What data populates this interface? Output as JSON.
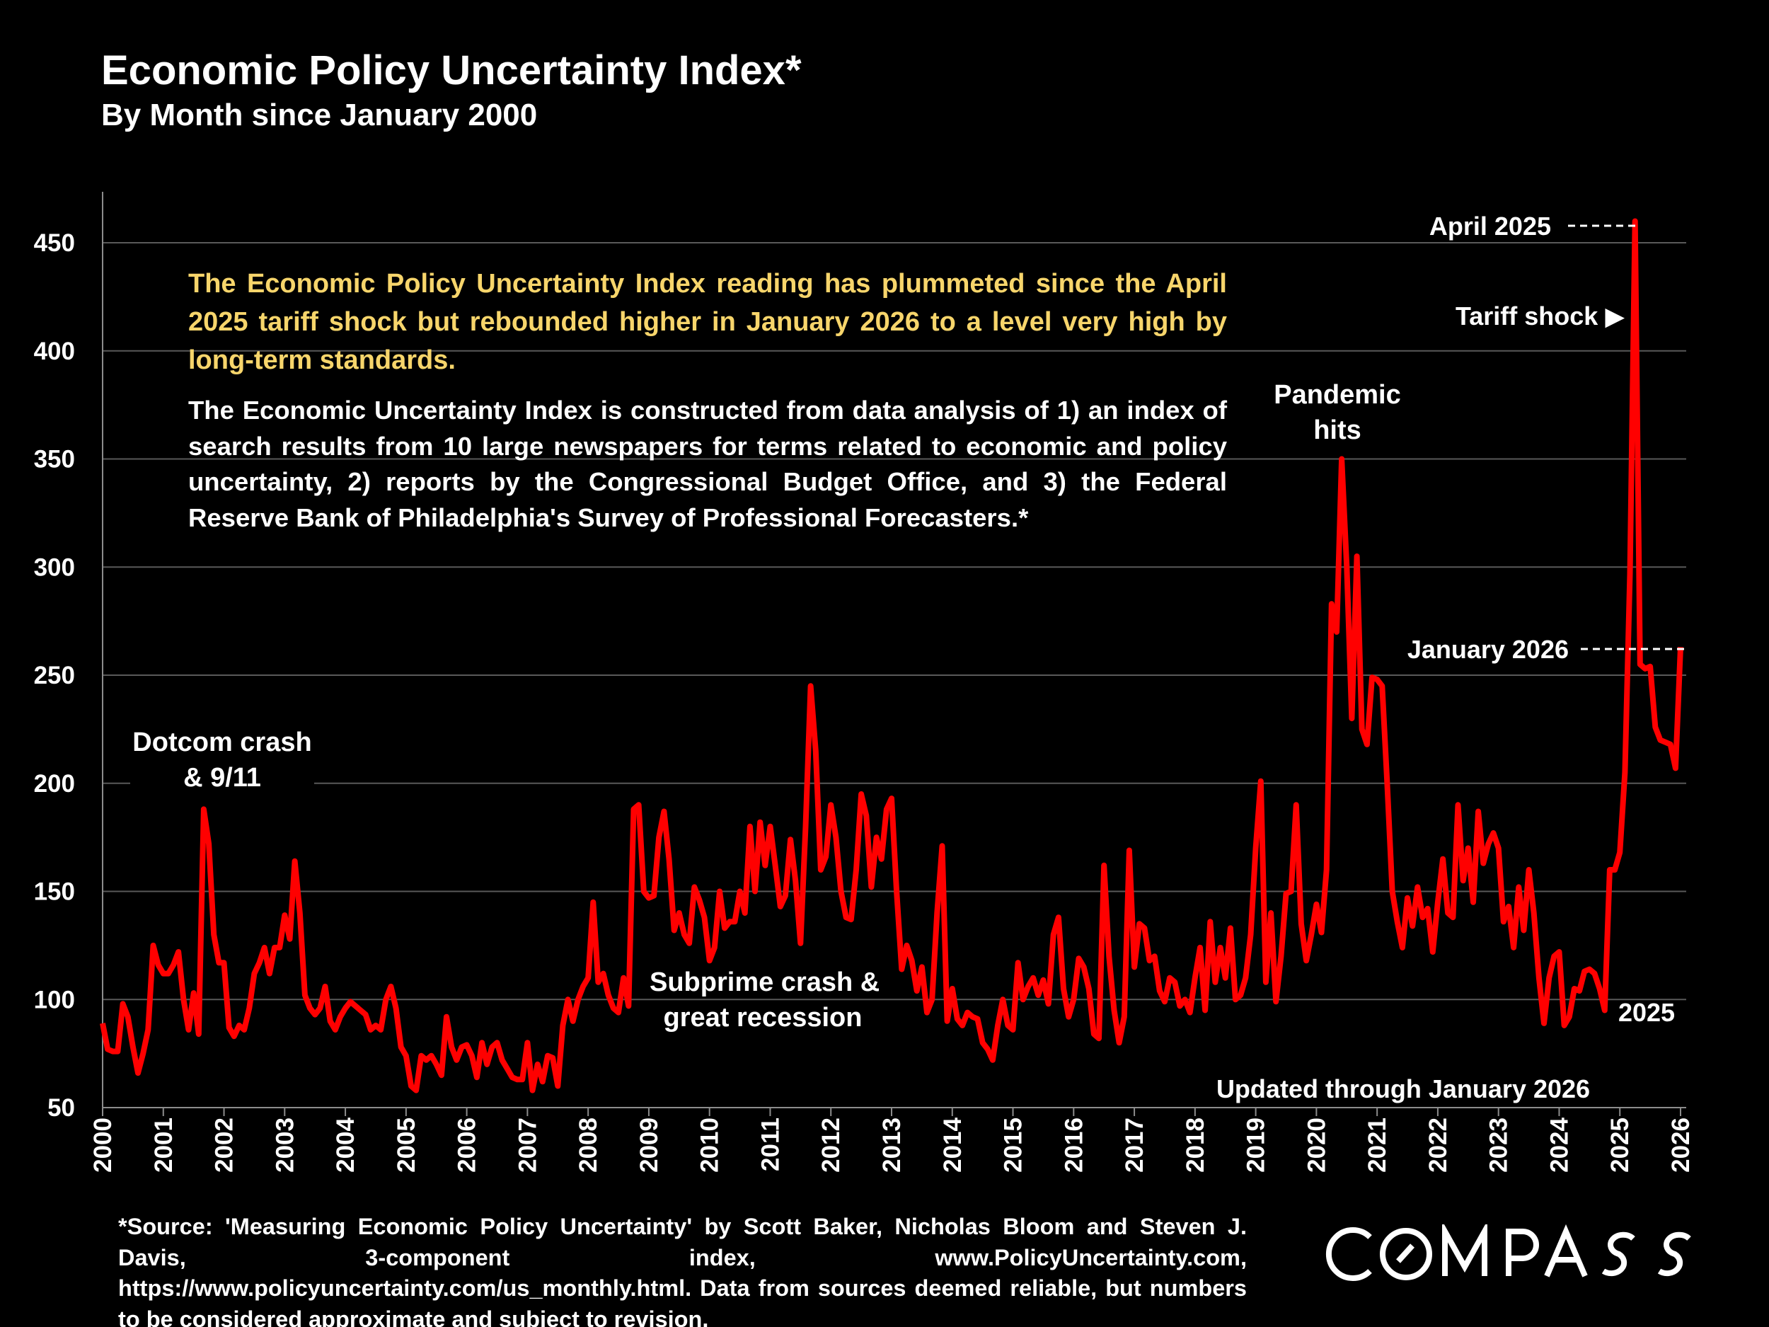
{
  "header": {
    "title": "Economic Policy Uncertainty Index*",
    "subtitle": "By Month since January 2000"
  },
  "notes": {
    "headline": "The Economic Policy Uncertainty Index reading has plummeted since the April 2025 tariff shock but rebounded higher in January 2026 to a level very high by long-term standards.",
    "description": "The Economic Uncertainty Index is constructed from data analysis of 1) an index of search results from 10 large newspapers for terms related to economic and policy uncertainty, 2) reports by the Congressional Budget Office, and 3) the Federal Reserve Bank of Philadelphia's Survey of Professional Forecasters.*"
  },
  "annotations": {
    "dotcom_1": "Dotcom crash",
    "dotcom_2": "& 9/11",
    "subprime_1": "Subprime crash &",
    "subprime_2": "great recession",
    "pandemic_1": "Pandemic",
    "pandemic_2": "hits",
    "april_2025": "April 2025",
    "tariff": "Tariff shock ▶",
    "jan_2026": "January 2026",
    "y2025": "2025",
    "updated": "Updated through January 2026"
  },
  "footer": {
    "source": "*Source: 'Measuring Economic Policy Uncertainty' by Scott Baker, Nicholas Bloom and Steven J. Davis, 3-component index, www.PolicyUncertainty.com, https://www.policyuncertainty.com/us_monthly.html. Data from sources deemed reliable, but numbers to be considered approximate and subject to revision."
  },
  "logo": {
    "text": "COMPASS"
  },
  "colors": {
    "background": "#000000",
    "line": "#FF0000",
    "headline": "#F7D56B",
    "text": "#FFFFFF",
    "grid": "#595959"
  },
  "chart_data": {
    "type": "line",
    "title": "Economic Policy Uncertainty Index*",
    "subtitle": "By Month since January 2000",
    "xlabel": "",
    "ylabel": "",
    "ylim": [
      50,
      450
    ],
    "yticks": [
      50,
      100,
      150,
      200,
      250,
      300,
      350,
      400,
      450
    ],
    "xticks": [
      "2000",
      "2001",
      "2002",
      "2003",
      "2004",
      "2005",
      "2006",
      "2007",
      "2008",
      "2009",
      "2010",
      "2011",
      "2012",
      "2013",
      "2014",
      "2015",
      "2016",
      "2017",
      "2018",
      "2019",
      "2020",
      "2021",
      "2022",
      "2023",
      "2024",
      "2025",
      "2026"
    ],
    "x_start": "2000-01",
    "x_end": "2026-01",
    "frequency": "monthly",
    "grid": true,
    "legend": "none",
    "series": [
      {
        "values": [
          89,
          77,
          76,
          76,
          98,
          92,
          78,
          66,
          75,
          86,
          125,
          116,
          112,
          112,
          116,
          122,
          100,
          86,
          103,
          84,
          188,
          172,
          130,
          117,
          117,
          87,
          83,
          88,
          86,
          96,
          112,
          117,
          124,
          112,
          124,
          124,
          139,
          128,
          164,
          140,
          102,
          96,
          93,
          96,
          106,
          90,
          86,
          92,
          96,
          99,
          97,
          95,
          93,
          86,
          88,
          86,
          100,
          106,
          96,
          78,
          74,
          60,
          58,
          74,
          72,
          74,
          70,
          65,
          92,
          78,
          72,
          78,
          79,
          74,
          64,
          80,
          70,
          78,
          80,
          72,
          68,
          64,
          63,
          63,
          80,
          58,
          70,
          62,
          74,
          73,
          60,
          88,
          100,
          90,
          100,
          106,
          110,
          145,
          108,
          112,
          102,
          96,
          94,
          110,
          97,
          188,
          190,
          150,
          147,
          148,
          175,
          187,
          165,
          132,
          140,
          130,
          126,
          152,
          146,
          138,
          118,
          124,
          150,
          133,
          136,
          136,
          150,
          140,
          180,
          150,
          182,
          162,
          180,
          162,
          143,
          148,
          174,
          155,
          126,
          180,
          245,
          215,
          160,
          166,
          190,
          175,
          150,
          138,
          137,
          160,
          195,
          185,
          152,
          175,
          165,
          188,
          193,
          150,
          114,
          125,
          118,
          104,
          115,
          94,
          100,
          140,
          171,
          90,
          105,
          91,
          88,
          94,
          92,
          91,
          80,
          77,
          72,
          88,
          100,
          88,
          86,
          117,
          100,
          106,
          110,
          102,
          109,
          98,
          130,
          138,
          105,
          92,
          100,
          119,
          115,
          105,
          84,
          82,
          162,
          120,
          95,
          80,
          92,
          169,
          115,
          135,
          133,
          118,
          120,
          104,
          99,
          110,
          108,
          97,
          100,
          94,
          110,
          124,
          95,
          136,
          108,
          124,
          110,
          133,
          100,
          102,
          110,
          130,
          170,
          201,
          108,
          140,
          99,
          120,
          149,
          150,
          190,
          135,
          118,
          130,
          144,
          131,
          160,
          283,
          270,
          350,
          300,
          230,
          305,
          225,
          218,
          249,
          248,
          245,
          200,
          150,
          136,
          124,
          147,
          134,
          152,
          138,
          142,
          122,
          145,
          165,
          140,
          138,
          190,
          155,
          170,
          145,
          187,
          163,
          172,
          177,
          170,
          136,
          143,
          124,
          152,
          132,
          160,
          140,
          110,
          89,
          110,
          120,
          122,
          88,
          92,
          105,
          104,
          113,
          114,
          112,
          105,
          95,
          160,
          160,
          168,
          205,
          297,
          460,
          255,
          253,
          254,
          226,
          220,
          219,
          218,
          207,
          263
        ]
      }
    ],
    "annotations": [
      "Dotcom crash & 9/11",
      "Subprime crash & great recession",
      "Pandemic hits",
      "April 2025",
      "Tariff shock",
      "January 2026",
      "2025",
      "Updated through January 2026"
    ]
  }
}
